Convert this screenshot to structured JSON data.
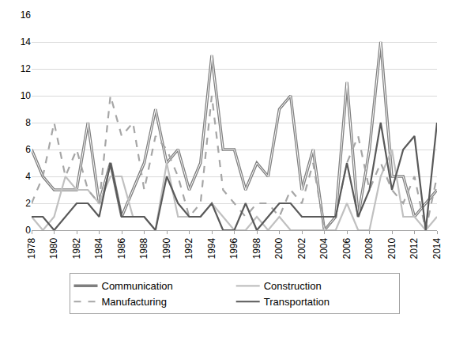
{
  "chart_data": {
    "type": "line",
    "x": [
      1978,
      1979,
      1980,
      1981,
      1982,
      1983,
      1984,
      1985,
      1986,
      1987,
      1988,
      1989,
      1990,
      1991,
      1992,
      1993,
      1994,
      1995,
      1996,
      1997,
      1998,
      1999,
      2000,
      2001,
      2002,
      2003,
      2004,
      2005,
      2006,
      2007,
      2008,
      2009,
      2010,
      2011,
      2012,
      2013,
      2014
    ],
    "series": [
      {
        "name": "Communication",
        "color": "#7f7f7f",
        "line_style": "double",
        "values": [
          6,
          4,
          3,
          3,
          3,
          8,
          2,
          5,
          1,
          3,
          5,
          9,
          5,
          6,
          3,
          5,
          13,
          6,
          6,
          3,
          5,
          4,
          9,
          10,
          3,
          6,
          0,
          1,
          11,
          1,
          6,
          14,
          4,
          4,
          1,
          2,
          3
        ]
      },
      {
        "name": "Construction",
        "color": "#c0c0c0",
        "line_style": "solid",
        "values": [
          1,
          0,
          1,
          4,
          3,
          3,
          2,
          4,
          4,
          1,
          1,
          0,
          5,
          1,
          1,
          1,
          2,
          1,
          0,
          0,
          1,
          0,
          1,
          0,
          0,
          0,
          0,
          0,
          2,
          0,
          0,
          4,
          6,
          1,
          1,
          0,
          1
        ]
      },
      {
        "name": "Manufacturing",
        "color": "#a6a6a6",
        "line_style": "dash",
        "values": [
          2,
          4,
          8,
          4,
          6,
          3,
          2,
          10,
          7,
          8,
          3,
          7,
          6,
          4,
          1,
          2,
          10,
          3,
          2,
          1,
          2,
          2,
          1,
          3,
          2,
          5,
          0,
          1,
          5,
          7,
          3,
          5,
          3,
          2,
          4,
          0,
          4
        ]
      },
      {
        "name": "Transportation",
        "color": "#595959",
        "line_style": "solid",
        "values": [
          1,
          1,
          0,
          1,
          2,
          2,
          1,
          5,
          1,
          1,
          1,
          0,
          4,
          2,
          1,
          1,
          2,
          0,
          0,
          2,
          0,
          1,
          2,
          2,
          1,
          1,
          1,
          1,
          5,
          1,
          3,
          8,
          3,
          6,
          7,
          0,
          8
        ]
      }
    ],
    "xlim": [
      1978,
      2014
    ],
    "xticks": [
      1978,
      1980,
      1982,
      1984,
      1986,
      1988,
      1990,
      1992,
      1994,
      1996,
      1998,
      2000,
      2002,
      2004,
      2006,
      2008,
      2010,
      2012,
      2014
    ],
    "ylim": [
      0,
      16
    ],
    "yticks": [
      0,
      2,
      4,
      6,
      8,
      10,
      12,
      14,
      16
    ],
    "grid": true,
    "legend": "bottom"
  }
}
